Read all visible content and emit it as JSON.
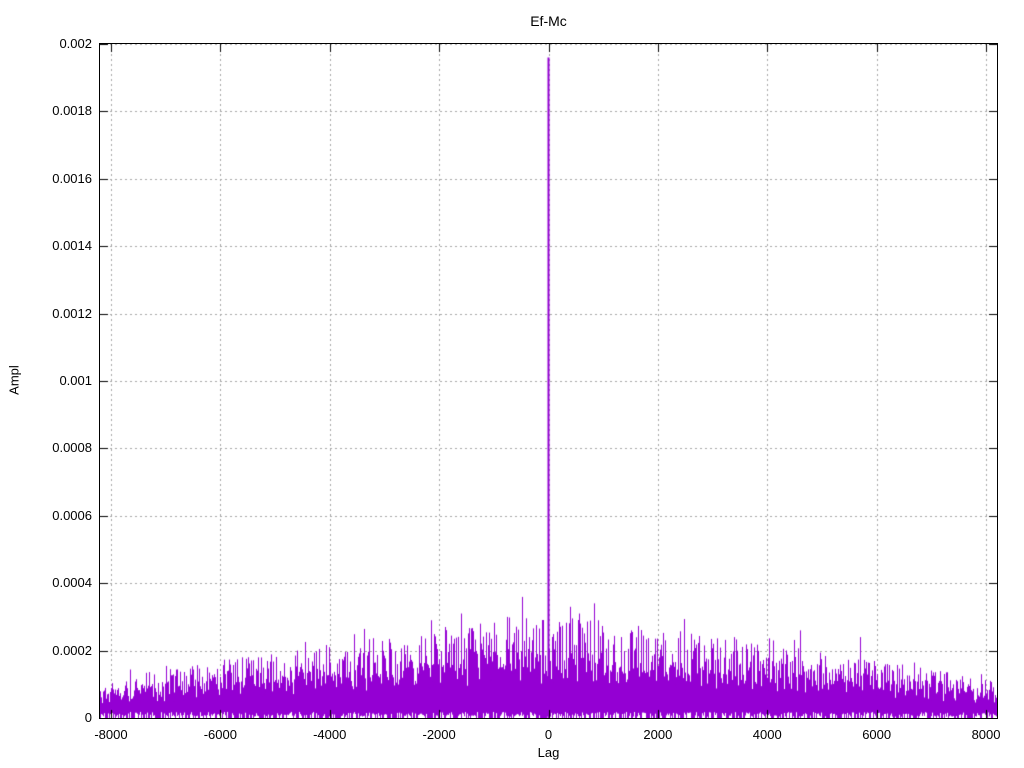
{
  "chart_data": {
    "type": "line",
    "title": "Ef-Mc",
    "xlabel": "Lag",
    "ylabel": "Ampl",
    "xlim": [
      -8200,
      8200
    ],
    "ylim": [
      0,
      0.002
    ],
    "xticks": {
      "values": [
        -8000,
        -6000,
        -4000,
        -2000,
        0,
        2000,
        4000,
        6000,
        8000
      ],
      "labels": [
        "-8000",
        "-6000",
        "-4000",
        "-2000",
        "0",
        "2000",
        "4000",
        "6000",
        "8000"
      ]
    },
    "yticks": {
      "values": [
        0,
        0.0002,
        0.0004,
        0.0006,
        0.0008,
        0.001,
        0.0012,
        0.0014,
        0.0016,
        0.0018,
        0.002
      ],
      "labels": [
        "0",
        "0.0002",
        "0.0004",
        "0.0006",
        "0.0008",
        "0.001",
        "0.0012",
        "0.0014",
        "0.0016",
        "0.0018",
        "0.002"
      ]
    },
    "grid": true,
    "legend": "none",
    "series_color": "#9400d3",
    "grid_color": "#a6a6a6",
    "axis_color": "#000000",
    "main_peak": {
      "lag": 0,
      "ampl": 0.00196
    },
    "notable_peaks": [
      [
        -2150,
        0.00029
      ],
      [
        -1900,
        0.00027
      ],
      [
        -1600,
        0.00031
      ],
      [
        -1250,
        0.00028
      ],
      [
        -750,
        0.0003
      ],
      [
        -350,
        0.00024
      ],
      [
        400,
        0.00033
      ],
      [
        560,
        0.00031
      ],
      [
        900,
        0.00029
      ],
      [
        1500,
        0.00026
      ],
      [
        2100,
        0.00024
      ],
      [
        2600,
        0.00025
      ],
      [
        3400,
        0.00024
      ],
      [
        4100,
        0.00023
      ],
      [
        4600,
        0.00026
      ],
      [
        5700,
        0.00024
      ],
      [
        -4600,
        0.0002
      ],
      [
        -5600,
        0.00018
      ],
      [
        7900,
        0.00013
      ]
    ],
    "noise": {
      "seed": 1337,
      "base_edge": 5.2e-05,
      "base_center": 0.000145,
      "peak_edge": 0.000105,
      "peak_center": 0.00031,
      "min_gap_probability": 0.45,
      "description": "dense impulse noise floor rising from the lag extremes toward zero lag, single dominant spike at lag 0"
    }
  }
}
